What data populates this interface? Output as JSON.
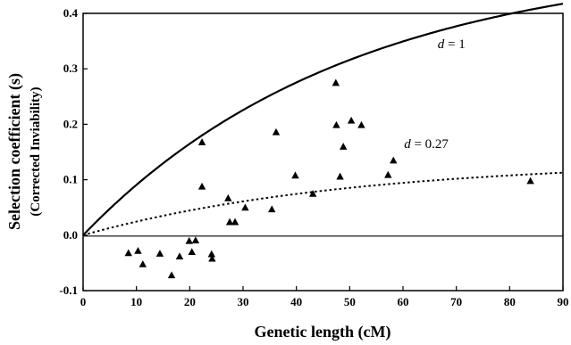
{
  "chart_data": {
    "type": "scatter",
    "xlabel": "Genetic length (cM)",
    "ylabel": "Selection coefficient (s)",
    "ylabel_sub": "(Corrected Inviability)",
    "xlim": [
      0,
      90
    ],
    "ylim": [
      -0.1,
      0.4
    ],
    "x_ticks": [
      "0",
      "10",
      "20",
      "30",
      "40",
      "50",
      "60",
      "70",
      "80",
      "90"
    ],
    "y_ticks": [
      "-0.1",
      "0.0",
      "0.1",
      "0.2",
      "0.3",
      "0.4"
    ],
    "grid": false,
    "marker": "triangle",
    "points": [
      {
        "x": 8.5,
        "y": -0.032
      },
      {
        "x": 10.3,
        "y": -0.028
      },
      {
        "x": 11.2,
        "y": -0.052
      },
      {
        "x": 14.4,
        "y": -0.033
      },
      {
        "x": 16.6,
        "y": -0.072
      },
      {
        "x": 18.1,
        "y": -0.038
      },
      {
        "x": 19.9,
        "y": -0.01
      },
      {
        "x": 20.4,
        "y": -0.03
      },
      {
        "x": 21.1,
        "y": -0.009
      },
      {
        "x": 22.3,
        "y": 0.088
      },
      {
        "x": 22.3,
        "y": 0.168
      },
      {
        "x": 24.1,
        "y": -0.034
      },
      {
        "x": 24.2,
        "y": -0.042
      },
      {
        "x": 27.2,
        "y": 0.067
      },
      {
        "x": 27.5,
        "y": 0.024
      },
      {
        "x": 28.5,
        "y": 0.024
      },
      {
        "x": 30.4,
        "y": 0.05
      },
      {
        "x": 35.4,
        "y": 0.047
      },
      {
        "x": 36.2,
        "y": 0.186
      },
      {
        "x": 39.8,
        "y": 0.108
      },
      {
        "x": 43.1,
        "y": 0.075
      },
      {
        "x": 47.4,
        "y": 0.275
      },
      {
        "x": 47.5,
        "y": 0.199
      },
      {
        "x": 48.2,
        "y": 0.106
      },
      {
        "x": 48.8,
        "y": 0.16
      },
      {
        "x": 50.3,
        "y": 0.207
      },
      {
        "x": 52.2,
        "y": 0.199
      },
      {
        "x": 57.2,
        "y": 0.109
      },
      {
        "x": 58.2,
        "y": 0.135
      },
      {
        "x": 83.9,
        "y": 0.098
      }
    ],
    "curves": [
      {
        "label_var": "d",
        "label_rest": " = 1",
        "d": 1,
        "style": "solid"
      },
      {
        "label_var": "d",
        "label_rest": " = 0.27",
        "d": 0.27,
        "style": "dotted"
      }
    ]
  }
}
